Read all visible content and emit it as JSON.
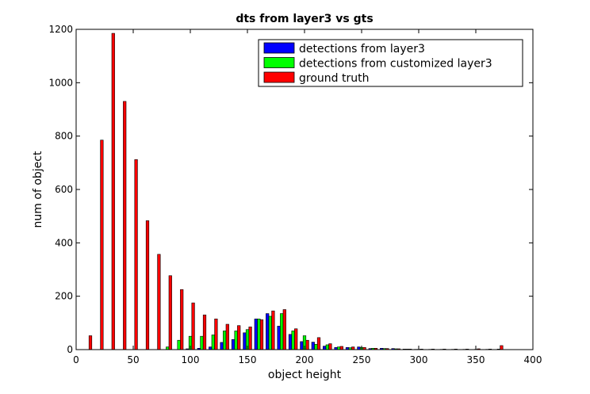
{
  "chart_data": {
    "type": "bar",
    "title": "dts from layer3 vs gts",
    "xlabel": "object height",
    "ylabel": "num of object",
    "xlim": [
      0,
      400
    ],
    "ylim": [
      0,
      1200
    ],
    "xticks": [
      0,
      50,
      100,
      150,
      200,
      250,
      300,
      350,
      400
    ],
    "yticks": [
      0,
      200,
      400,
      600,
      800,
      1000,
      1200
    ],
    "grid": false,
    "legend_position": "top-right",
    "x": [
      10,
      20,
      30,
      40,
      50,
      60,
      70,
      80,
      90,
      100,
      110,
      120,
      130,
      140,
      150,
      160,
      170,
      180,
      190,
      200,
      210,
      220,
      230,
      240,
      250,
      260,
      270,
      280,
      290,
      300,
      310,
      320,
      330,
      340,
      350,
      360,
      370
    ],
    "series": [
      {
        "name": "detections from layer3",
        "color": "#0000ff",
        "values": [
          0,
          0,
          0,
          0,
          0,
          0,
          0,
          0,
          0,
          3,
          5,
          10,
          27,
          38,
          63,
          115,
          135,
          88,
          57,
          30,
          28,
          13,
          8,
          8,
          10,
          4,
          5,
          4,
          2,
          1,
          0,
          0,
          0,
          0,
          0,
          0,
          0
        ]
      },
      {
        "name": "detections from customized layer3",
        "color": "#00ff00",
        "values": [
          0,
          0,
          0,
          0,
          0,
          0,
          0,
          10,
          35,
          50,
          50,
          55,
          70,
          70,
          75,
          115,
          125,
          135,
          70,
          52,
          20,
          18,
          10,
          7,
          8,
          5,
          4,
          3,
          2,
          1,
          1,
          1,
          1,
          1,
          1,
          1,
          2
        ]
      },
      {
        "name": "ground truth",
        "color": "#ff0000",
        "values": [
          52,
          785,
          1185,
          930,
          712,
          483,
          357,
          277,
          225,
          175,
          130,
          115,
          95,
          90,
          85,
          112,
          145,
          150,
          78,
          35,
          45,
          22,
          12,
          10,
          8,
          5,
          4,
          3,
          2,
          2,
          2,
          2,
          2,
          2,
          3,
          2,
          15
        ]
      }
    ]
  }
}
